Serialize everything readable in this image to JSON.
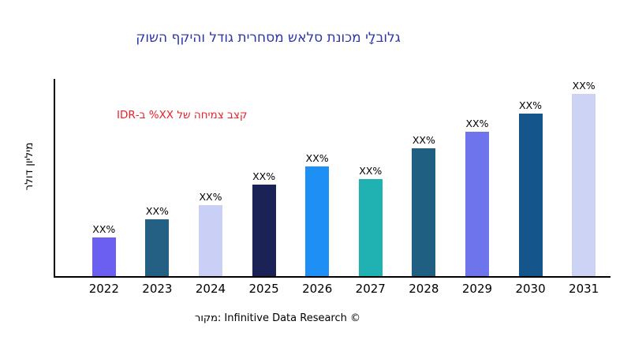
{
  "chart_data": {
    "type": "bar",
    "title": "גלובלָי מכונת סלאש מסחרית גודל והיקף השוק",
    "title_color": "#2b35a8",
    "ylabel": "מיליון דולר",
    "annotation": {
      "text": "קצב צמיחה של XX% ב-IDR",
      "color": "#e8212b"
    },
    "categories": [
      "2022",
      "2023",
      "2024",
      "2025",
      "2026",
      "2027",
      "2028",
      "2029",
      "2030",
      "2031"
    ],
    "values": [
      21,
      31,
      39,
      50,
      60,
      53,
      70,
      79,
      89,
      100
    ],
    "bar_labels": [
      "XX%",
      "XX%",
      "XX%",
      "XX%",
      "XX%",
      "XX%",
      "XX%",
      "XX%",
      "XX%",
      "XX%"
    ],
    "bar_colors": [
      "#6a5ff0",
      "#236084",
      "#c9cff5",
      "#1b2256",
      "#1e8ff5",
      "#20b2b2",
      "#1e5f82",
      "#6e74ec",
      "#14568c",
      "#ccd3f4"
    ],
    "ylim": [
      0,
      109
    ],
    "grid": false,
    "legend": "none",
    "axis_color": "#000000",
    "source": "מקור: Infinitive Data Research ©"
  }
}
